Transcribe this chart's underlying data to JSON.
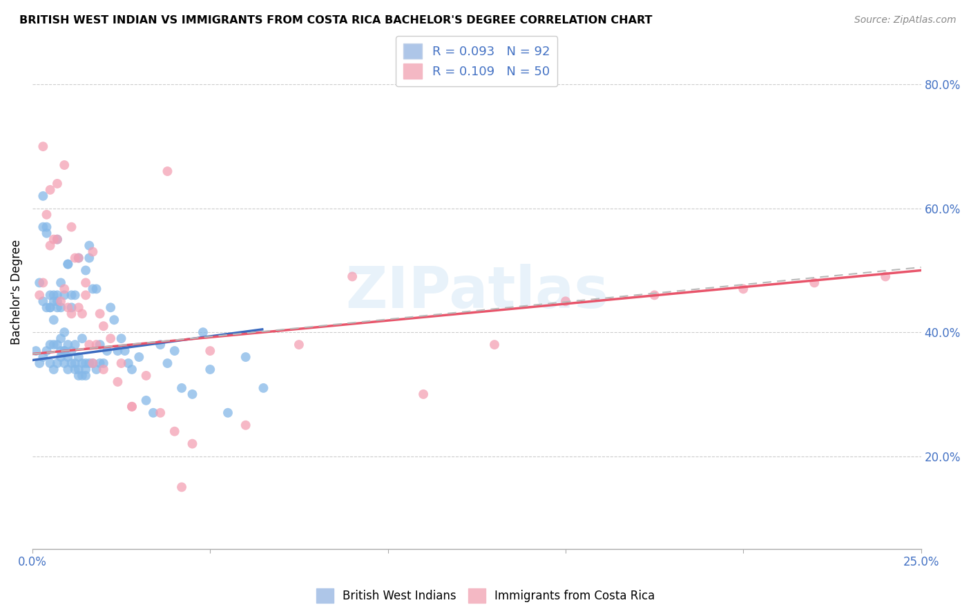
{
  "title": "BRITISH WEST INDIAN VS IMMIGRANTS FROM COSTA RICA BACHELOR'S DEGREE CORRELATION CHART",
  "source": "Source: ZipAtlas.com",
  "ylabel": "Bachelor's Degree",
  "right_yticks": [
    "20.0%",
    "40.0%",
    "60.0%",
    "80.0%"
  ],
  "right_ytick_vals": [
    0.2,
    0.4,
    0.6,
    0.8
  ],
  "xlim": [
    0.0,
    0.25
  ],
  "ylim": [
    0.05,
    0.88
  ],
  "watermark_text": "ZIPatlas",
  "blue_scatter_color": "#85b8e8",
  "pink_scatter_color": "#f4a0b4",
  "blue_line_color": "#3a6abf",
  "pink_line_color": "#e8546a",
  "dashed_line_color": "#b8b8b8",
  "blue_trend_x": [
    0.0,
    0.065
  ],
  "blue_trend_y": [
    0.355,
    0.405
  ],
  "pink_trend_x": [
    0.0,
    0.25
  ],
  "pink_trend_y": [
    0.365,
    0.5
  ],
  "dashed_trend_x": [
    0.0,
    0.25
  ],
  "dashed_trend_y": [
    0.365,
    0.505
  ],
  "blue_points_x": [
    0.001,
    0.002,
    0.002,
    0.003,
    0.003,
    0.003,
    0.004,
    0.004,
    0.004,
    0.005,
    0.005,
    0.005,
    0.005,
    0.006,
    0.006,
    0.006,
    0.006,
    0.007,
    0.007,
    0.007,
    0.007,
    0.007,
    0.008,
    0.008,
    0.008,
    0.008,
    0.009,
    0.009,
    0.009,
    0.009,
    0.01,
    0.01,
    0.01,
    0.01,
    0.011,
    0.011,
    0.011,
    0.012,
    0.012,
    0.012,
    0.013,
    0.013,
    0.013,
    0.014,
    0.014,
    0.015,
    0.015,
    0.015,
    0.016,
    0.016,
    0.017,
    0.017,
    0.018,
    0.018,
    0.019,
    0.019,
    0.02,
    0.021,
    0.022,
    0.023,
    0.024,
    0.025,
    0.026,
    0.027,
    0.028,
    0.03,
    0.032,
    0.034,
    0.036,
    0.038,
    0.04,
    0.042,
    0.045,
    0.048,
    0.05,
    0.055,
    0.06,
    0.065,
    0.003,
    0.004,
    0.005,
    0.006,
    0.007,
    0.008,
    0.009,
    0.01,
    0.011,
    0.012,
    0.013,
    0.014,
    0.015,
    0.016
  ],
  "blue_points_y": [
    0.37,
    0.35,
    0.48,
    0.36,
    0.45,
    0.57,
    0.37,
    0.44,
    0.56,
    0.35,
    0.38,
    0.46,
    0.44,
    0.34,
    0.38,
    0.42,
    0.45,
    0.35,
    0.38,
    0.44,
    0.46,
    0.55,
    0.36,
    0.39,
    0.44,
    0.48,
    0.35,
    0.37,
    0.4,
    0.46,
    0.34,
    0.36,
    0.38,
    0.51,
    0.35,
    0.37,
    0.44,
    0.35,
    0.38,
    0.46,
    0.33,
    0.36,
    0.52,
    0.35,
    0.39,
    0.33,
    0.35,
    0.5,
    0.35,
    0.54,
    0.35,
    0.47,
    0.34,
    0.47,
    0.35,
    0.38,
    0.35,
    0.37,
    0.44,
    0.42,
    0.37,
    0.39,
    0.37,
    0.35,
    0.34,
    0.36,
    0.29,
    0.27,
    0.38,
    0.35,
    0.37,
    0.31,
    0.3,
    0.4,
    0.34,
    0.27,
    0.36,
    0.31,
    0.62,
    0.57,
    0.44,
    0.46,
    0.45,
    0.37,
    0.37,
    0.51,
    0.46,
    0.34,
    0.34,
    0.33,
    0.34,
    0.52
  ],
  "pink_points_x": [
    0.002,
    0.003,
    0.004,
    0.005,
    0.006,
    0.007,
    0.008,
    0.009,
    0.01,
    0.011,
    0.012,
    0.013,
    0.014,
    0.015,
    0.016,
    0.017,
    0.018,
    0.019,
    0.02,
    0.022,
    0.025,
    0.028,
    0.032,
    0.036,
    0.04,
    0.045,
    0.003,
    0.005,
    0.007,
    0.009,
    0.011,
    0.013,
    0.015,
    0.017,
    0.02,
    0.024,
    0.028,
    0.05,
    0.06,
    0.075,
    0.09,
    0.11,
    0.13,
    0.15,
    0.175,
    0.2,
    0.22,
    0.24,
    0.038,
    0.042
  ],
  "pink_points_y": [
    0.46,
    0.48,
    0.59,
    0.54,
    0.55,
    0.55,
    0.45,
    0.47,
    0.44,
    0.43,
    0.52,
    0.44,
    0.43,
    0.46,
    0.38,
    0.53,
    0.38,
    0.43,
    0.41,
    0.39,
    0.35,
    0.28,
    0.33,
    0.27,
    0.24,
    0.22,
    0.7,
    0.63,
    0.64,
    0.67,
    0.57,
    0.52,
    0.48,
    0.35,
    0.34,
    0.32,
    0.28,
    0.37,
    0.25,
    0.38,
    0.49,
    0.3,
    0.38,
    0.45,
    0.46,
    0.47,
    0.48,
    0.49,
    0.66,
    0.15
  ]
}
